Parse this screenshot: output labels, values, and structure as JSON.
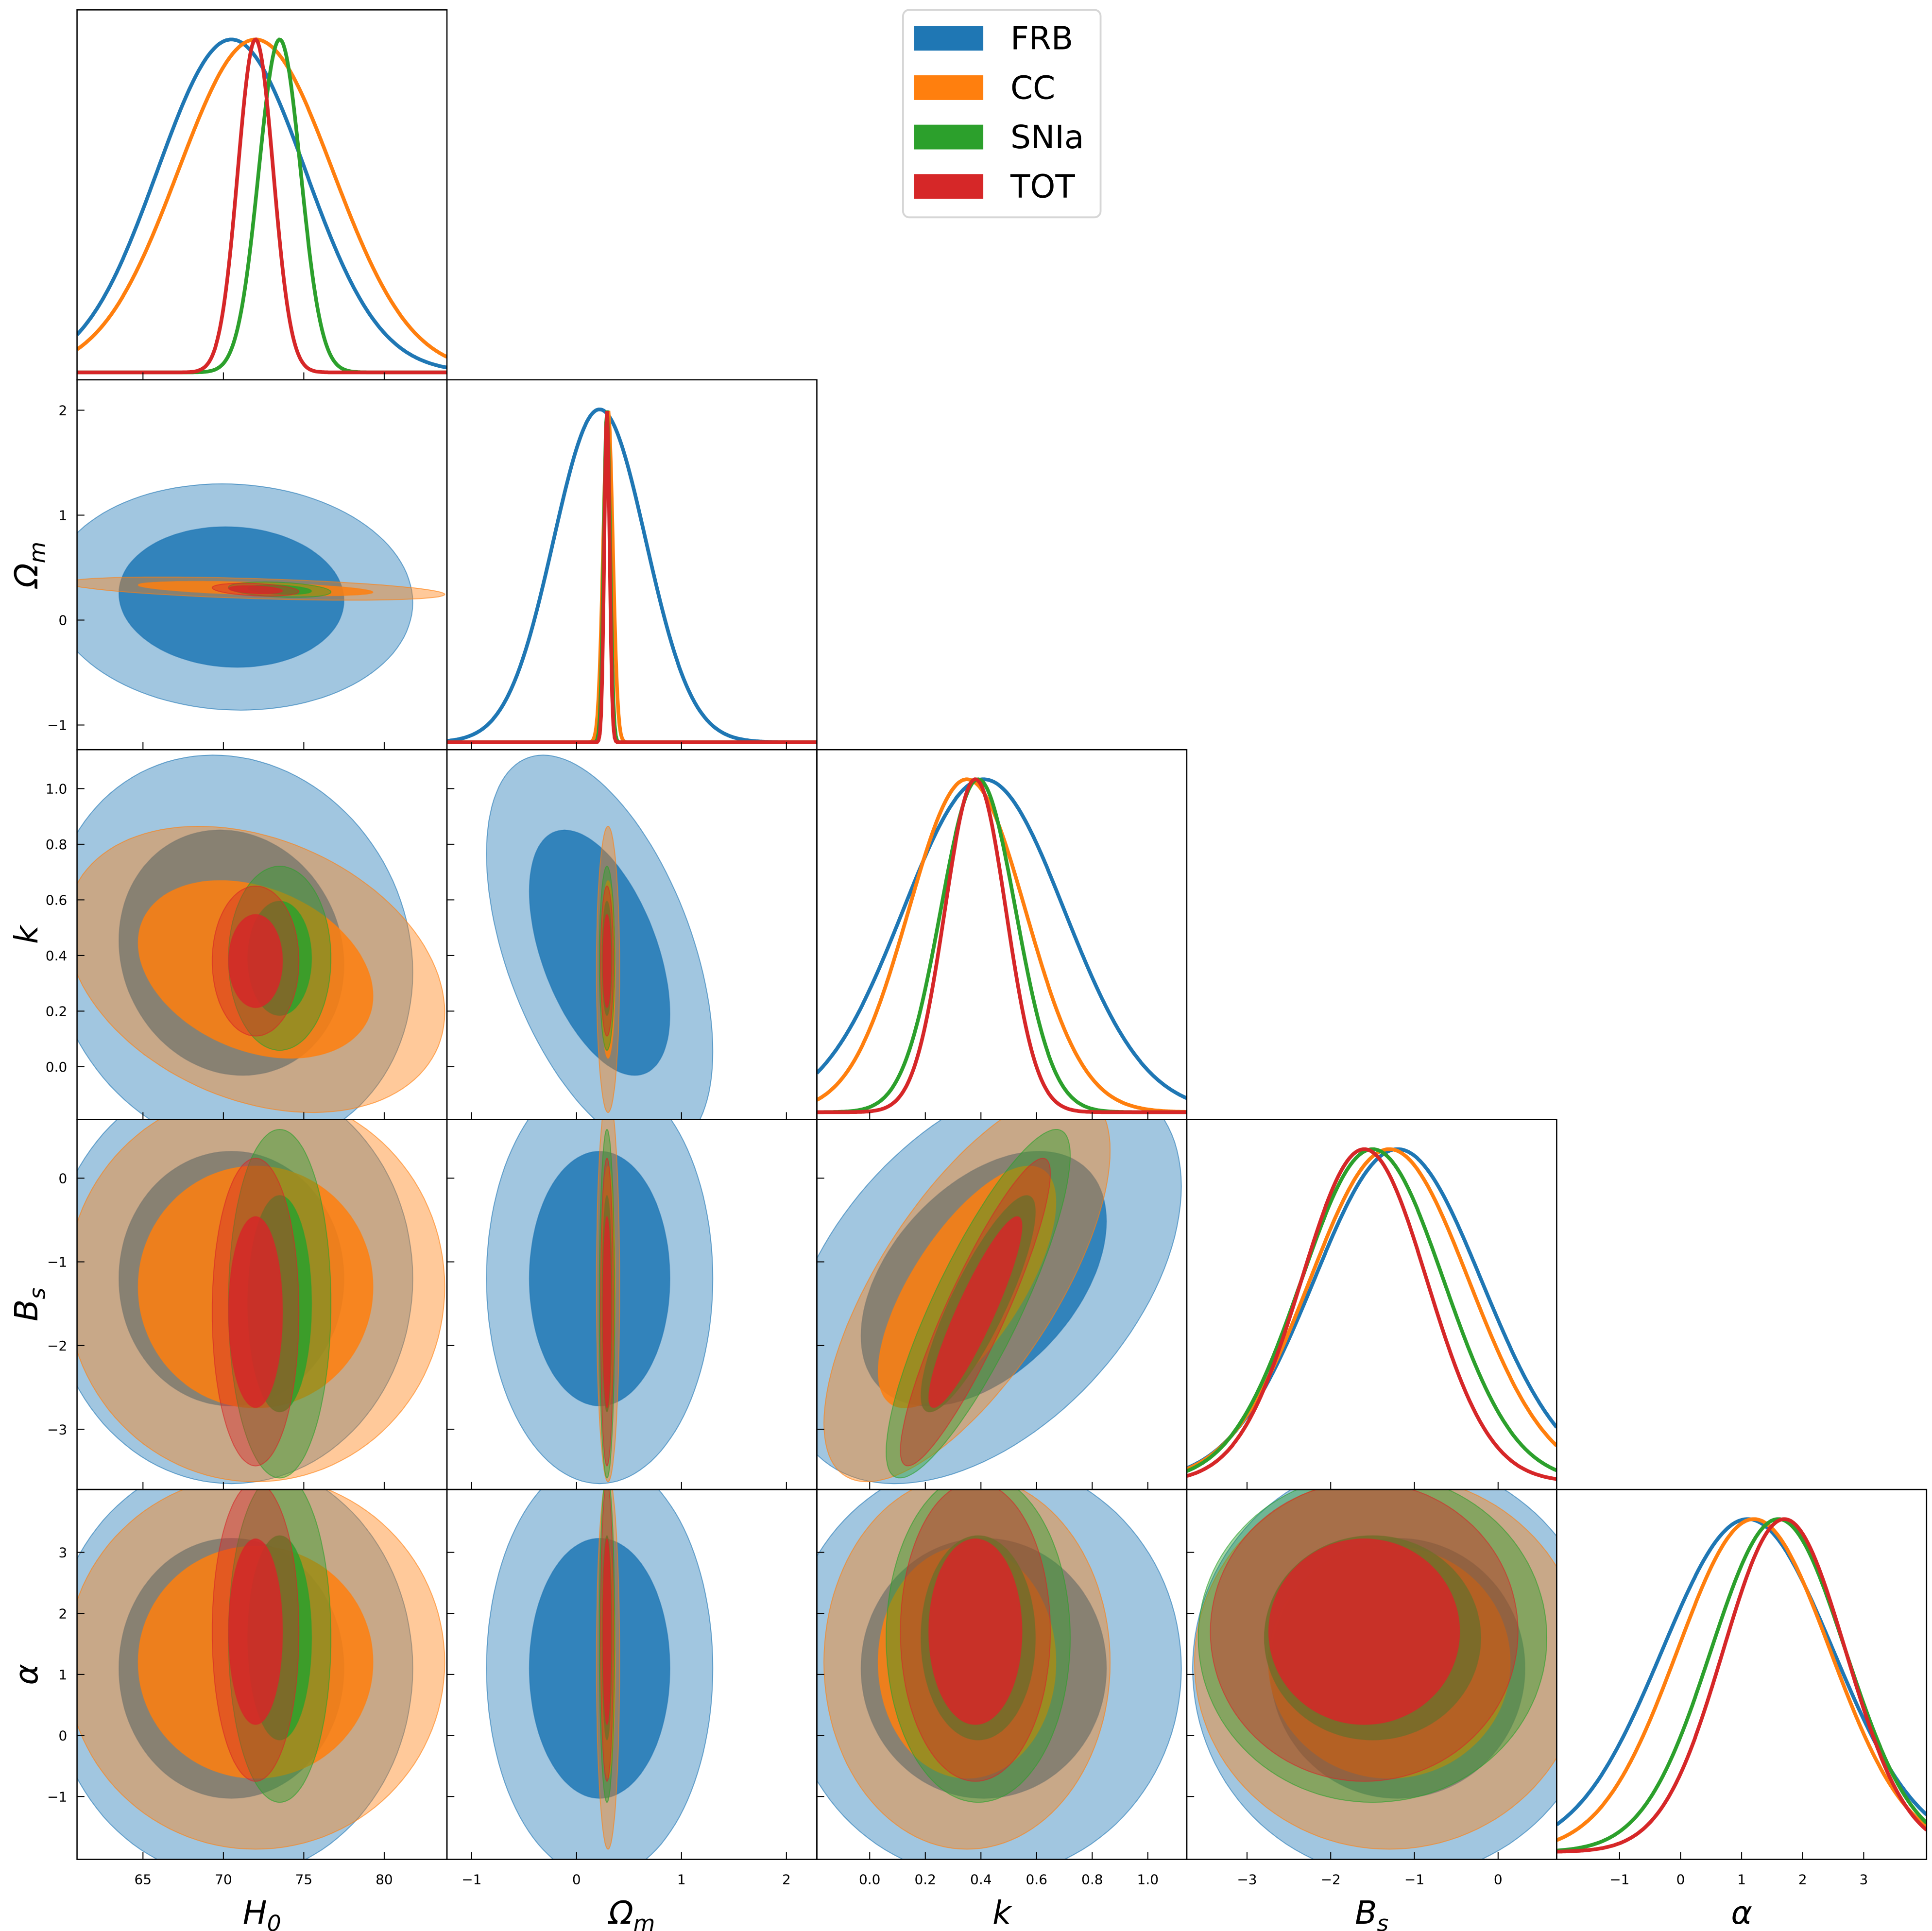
{
  "chart_data": {
    "type": "corner",
    "title": "",
    "params": [
      {
        "id": "H0",
        "label_main": "H",
        "label_sub": "0",
        "range": [
          60.9,
          83.9
        ],
        "ticks": [
          65,
          70,
          75,
          80
        ],
        "tick_labels": [
          "65",
          "70",
          "75",
          "80"
        ]
      },
      {
        "id": "Om",
        "label_main": "Ω",
        "label_sub": "m",
        "range": [
          -1.235,
          2.29
        ],
        "ticks": [
          -1,
          0,
          1,
          2
        ],
        "tick_labels": [
          "−1",
          "0",
          "1",
          "2"
        ]
      },
      {
        "id": "k",
        "label_main": "k",
        "label_sub": "",
        "range": [
          -0.19,
          1.14
        ],
        "ticks": [
          0,
          0.2,
          0.4,
          0.6,
          0.8,
          1.0
        ],
        "tick_labels": [
          "0.0",
          "0.2",
          "0.4",
          "0.6",
          "0.8",
          "1.0"
        ]
      },
      {
        "id": "Bs",
        "label_main": "B",
        "label_sub": "s",
        "range": [
          -3.72,
          0.7
        ],
        "ticks": [
          -3,
          -2,
          -1,
          0
        ],
        "tick_labels": [
          "−3",
          "−2",
          "−1",
          "0"
        ]
      },
      {
        "id": "alpha",
        "label_main": "α",
        "label_sub": "",
        "range": [
          -2.03,
          4.03
        ],
        "ticks": [
          -1,
          0,
          1,
          2,
          3
        ],
        "tick_labels": [
          "−1",
          "0",
          "1",
          "2",
          "3"
        ]
      }
    ],
    "series": [
      {
        "name": "FRB",
        "color": "#1f77b4",
        "mean": {
          "H0": 70.5,
          "Om": 0.22,
          "k": 0.41,
          "Bs": -1.2,
          "alpha": 1.1
        },
        "sigma": {
          "H0": 4.6,
          "Om": 0.44,
          "k": 0.29,
          "Bs": 1.0,
          "alpha": 1.4
        },
        "corr": {
          "H0|Om": -0.05,
          "H0|k": -0.1,
          "Om|k": -0.5,
          "H0|Bs": 0.0,
          "Om|Bs": 0.0,
          "k|Bs": 0.45,
          "H0|alpha": 0.0,
          "Om|alpha": 0.0,
          "k|alpha": 0.0,
          "Bs|alpha": 0.0
        }
      },
      {
        "name": "CC",
        "color": "#ff7f0e",
        "mean": {
          "H0": 72.0,
          "Om": 0.3,
          "k": 0.35,
          "Bs": -1.3,
          "alpha": 1.2
        },
        "sigma": {
          "H0": 4.8,
          "Om": 0.045,
          "k": 0.21,
          "Bs": 0.95,
          "alpha": 1.25
        },
        "corr": {
          "H0|Om": -0.5,
          "H0|k": -0.3,
          "Om|k": 0.0,
          "H0|Bs": 0.0,
          "Om|Bs": 0.0,
          "k|Bs": 0.7,
          "H0|alpha": 0.0,
          "Om|alpha": 0.0,
          "k|alpha": 0.0,
          "Bs|alpha": 0.0
        }
      },
      {
        "name": "SNIa",
        "color": "#2ca02c",
        "mean": {
          "H0": 73.5,
          "Om": 0.29,
          "k": 0.39,
          "Bs": -1.5,
          "alpha": 1.6
        },
        "sigma": {
          "H0": 1.3,
          "Om": 0.03,
          "k": 0.135,
          "Bs": 0.85,
          "alpha": 1.1
        },
        "corr": {
          "H0|Om": -0.3,
          "H0|k": 0.0,
          "Om|k": 0.0,
          "H0|Bs": 0.0,
          "Om|Bs": 0.0,
          "k|Bs": 0.85,
          "H0|alpha": 0.0,
          "Om|alpha": 0.0,
          "k|alpha": 0.0,
          "Bs|alpha": 0.0
        }
      },
      {
        "name": "TOT",
        "color": "#d62728",
        "mean": {
          "H0": 72.0,
          "Om": 0.29,
          "k": 0.38,
          "Bs": -1.6,
          "alpha": 1.7
        },
        "sigma": {
          "H0": 1.1,
          "Om": 0.025,
          "k": 0.11,
          "Bs": 0.75,
          "alpha": 1.0
        },
        "corr": {
          "H0|Om": -0.3,
          "H0|k": 0.0,
          "Om|k": 0.0,
          "H0|Bs": 0.0,
          "Om|Bs": 0.0,
          "k|Bs": 0.9,
          "H0|alpha": 0.0,
          "Om|alpha": 0.0,
          "k|alpha": 0.0,
          "Bs|alpha": 0.0
        }
      }
    ],
    "contour_levels": [
      "68%",
      "95%"
    ],
    "legend_placement": "top-center",
    "grid": false
  }
}
